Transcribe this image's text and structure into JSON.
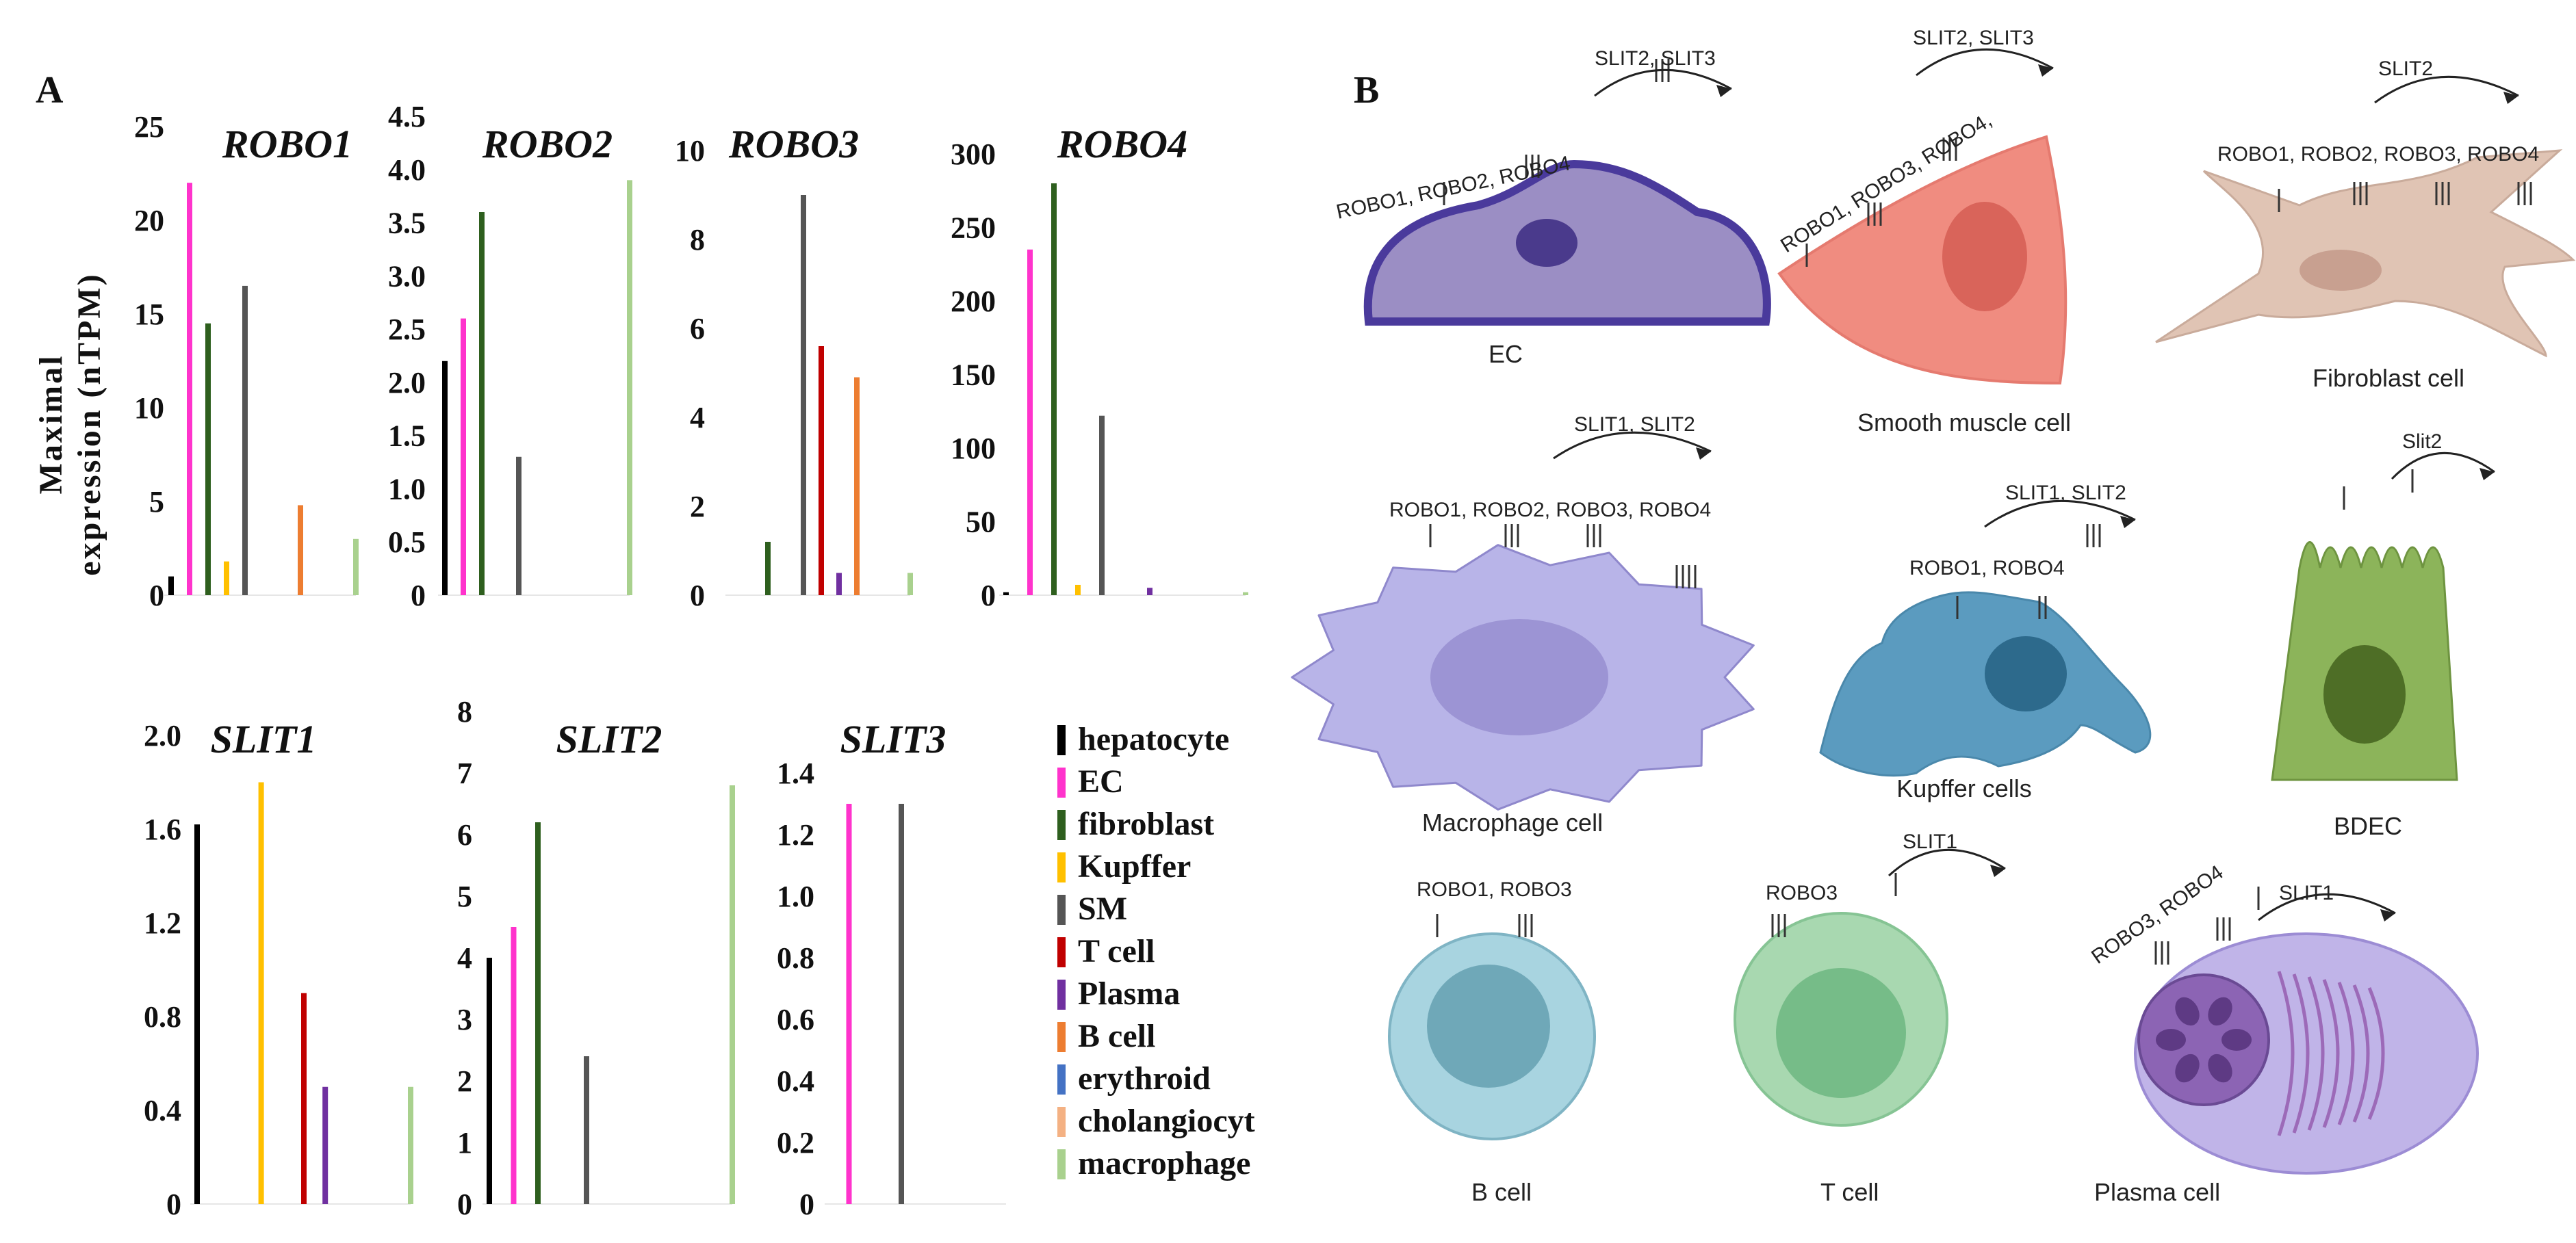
{
  "panel_a_label": "A",
  "panel_b_label": "B",
  "y_axis_label_line1": "Maximal",
  "y_axis_label_line2": "expression (nTPM)",
  "legend": [
    {
      "name": "hepatocyte",
      "color": "#000000"
    },
    {
      "name": "EC",
      "color": "#ff33cc"
    },
    {
      "name": "fibroblast",
      "color": "#2e5f1e"
    },
    {
      "name": "Kupffer",
      "color": "#ffc000"
    },
    {
      "name": "SM",
      "color": "#555555"
    },
    {
      "name": "T cell",
      "color": "#c00000"
    },
    {
      "name": "Plasma",
      "color": "#7030a0"
    },
    {
      "name": "B cell",
      "color": "#ed7d31"
    },
    {
      "name": "erythroid",
      "color": "#4472c4"
    },
    {
      "name": "cholangiocyt",
      "color": "#f4b183"
    },
    {
      "name": "macrophage",
      "color": "#a9d18e"
    }
  ],
  "chart_data": [
    {
      "type": "bar",
      "title": "ROBO1",
      "ylabel": "Maximal expression (nTPM)",
      "ylim": [
        0,
        25
      ],
      "ticks": [
        "0",
        "5",
        "10",
        "15",
        "20",
        "25"
      ],
      "categories": [
        "hepatocyte",
        "EC",
        "fibroblast",
        "Kupffer",
        "SM",
        "T cell",
        "Plasma",
        "B cell",
        "erythroid",
        "cholangiocyt",
        "macrophage"
      ],
      "values": [
        1,
        22,
        14.5,
        1.8,
        16.5,
        0,
        0,
        4.8,
        0,
        0,
        3
      ]
    },
    {
      "type": "bar",
      "title": "ROBO2",
      "ylim": [
        0,
        4.5
      ],
      "ticks": [
        "0",
        "0.5",
        "1.0",
        "1.5",
        "2.0",
        "2.5",
        "3.0",
        "3.5",
        "4.0",
        "4.5"
      ],
      "categories": [
        "hepatocyte",
        "EC",
        "fibroblast",
        "Kupffer",
        "SM",
        "T cell",
        "Plasma",
        "B cell",
        "erythroid",
        "cholangiocyt",
        "macrophage"
      ],
      "values": [
        2.2,
        2.6,
        3.6,
        0,
        1.3,
        0,
        0,
        0,
        0,
        0,
        3.9
      ]
    },
    {
      "type": "bar",
      "title": "ROBO3",
      "ylim": [
        0,
        10
      ],
      "ticks": [
        "0",
        "2",
        "4",
        "6",
        "8",
        "10"
      ],
      "categories": [
        "hepatocyte",
        "EC",
        "fibroblast",
        "Kupffer",
        "SM",
        "T cell",
        "Plasma",
        "B cell",
        "erythroid",
        "cholangiocyt",
        "macrophage"
      ],
      "values": [
        0,
        0,
        1.2,
        0,
        9,
        5.6,
        0.5,
        4.9,
        0,
        0,
        0.5
      ]
    },
    {
      "type": "bar",
      "title": "ROBO4",
      "ylim": [
        0,
        300
      ],
      "ticks": [
        "0",
        "50",
        "100",
        "150",
        "200",
        "250",
        "300"
      ],
      "categories": [
        "hepatocyte",
        "EC",
        "fibroblast",
        "Kupffer",
        "SM",
        "T cell",
        "Plasma",
        "B cell",
        "erythroid",
        "cholangiocyt",
        "macrophage"
      ],
      "values": [
        2,
        235,
        280,
        7,
        122,
        0,
        5,
        0,
        0,
        0,
        2
      ]
    },
    {
      "type": "bar",
      "title": "SLIT1",
      "ylim": [
        0,
        2.0
      ],
      "ticks": [
        "0",
        "0.4",
        "0.8",
        "1.2",
        "1.6",
        "2.0"
      ],
      "categories": [
        "hepatocyte",
        "EC",
        "fibroblast",
        "Kupffer",
        "SM",
        "T cell",
        "Plasma",
        "B cell",
        "erythroid",
        "cholangiocyt",
        "macrophage"
      ],
      "values": [
        1.62,
        0,
        0,
        1.8,
        0,
        0.9,
        0.5,
        0,
        0,
        0,
        0.5
      ]
    },
    {
      "type": "bar",
      "title": "SLIT2",
      "ylim": [
        0,
        8
      ],
      "ticks": [
        "0",
        "1",
        "2",
        "3",
        "4",
        "5",
        "6",
        "7",
        "8"
      ],
      "categories": [
        "hepatocyte",
        "EC",
        "fibroblast",
        "Kupffer",
        "SM",
        "T cell",
        "Plasma",
        "B cell",
        "erythroid",
        "cholangiocyt",
        "macrophage"
      ],
      "values": [
        4,
        4.5,
        6.2,
        0,
        2.4,
        0,
        0,
        0,
        0,
        0,
        6.8
      ]
    },
    {
      "type": "bar",
      "title": "SLIT3",
      "ylim": [
        0,
        1.4
      ],
      "ticks": [
        "0",
        "0.2",
        "0.4",
        "0.6",
        "0.8",
        "1.0",
        "1.2",
        "1.4"
      ],
      "categories": [
        "hepatocyte",
        "EC",
        "fibroblast",
        "Kupffer",
        "SM",
        "T cell",
        "Plasma",
        "B cell",
        "erythroid",
        "cholangiocyt",
        "macrophage"
      ],
      "values": [
        0,
        1.3,
        0,
        0,
        1.3,
        0,
        0,
        0,
        0,
        0,
        0
      ]
    }
  ],
  "cells": [
    {
      "id": "ec",
      "name": "EC",
      "receptors": "ROBO1, ROBO2,  ROBO4",
      "ligands": "SLIT2, SLIT3",
      "body": "#9b8ec4",
      "nucleus": "#4a3a8c",
      "outline": "#4a3a9c"
    },
    {
      "id": "sm",
      "name": "Smooth muscle  cell",
      "receptors": "ROBO1, ROBO3, ROBO4,",
      "ligands": "SLIT2, SLIT3",
      "body": "#f08c80",
      "nucleus": "#d9645a",
      "outline": "#e57a6f"
    },
    {
      "id": "fib",
      "name": "Fibroblast cell",
      "receptors": "ROBO1, ROBO2, ROBO3, ROBO4",
      "ligands": "SLIT2",
      "body": "#e0c4b4",
      "nucleus": "#c8a090",
      "outline": "#c9ab9b"
    },
    {
      "id": "mac",
      "name": "Macrophage cell",
      "receptors": "ROBO1, ROBO2, ROBO3, ROBO4",
      "ligands": "SLIT1, SLIT2",
      "body": "#b8b4e8",
      "nucleus": "#9c94d4",
      "outline": "#8f88cc"
    },
    {
      "id": "kup",
      "name": "Kupffer cells",
      "receptors": "ROBO1, ROBO4",
      "ligands": "SLIT1, SLIT2",
      "body": "#5b9bbf",
      "nucleus": "#2d6a8c",
      "outline": "#4a88ab"
    },
    {
      "id": "bdec",
      "name": "BDEC",
      "receptors": "",
      "ligands": "Slit2",
      "body": "#8cb45a",
      "nucleus": "#4e6e26",
      "outline": "#6e9440"
    },
    {
      "id": "bcell",
      "name": "B cell",
      "receptors": "ROBO1, ROBO3",
      "ligands": "",
      "body": "#a8d4e0",
      "nucleus": "#6fa8b8",
      "outline": "#7fb4c4"
    },
    {
      "id": "tcell",
      "name": "T cell",
      "receptors": "ROBO3",
      "ligands": "SLIT1",
      "body": "#a8d8b0",
      "nucleus": "#76bc88",
      "outline": "#86c494"
    },
    {
      "id": "plasma",
      "name": "Plasma cell",
      "receptors": "ROBO3, ROBO4",
      "ligands": "SLIT1",
      "body": "#c0b4e8",
      "nucleus": "#8c64b4",
      "outline": "#9c8cd4"
    }
  ]
}
